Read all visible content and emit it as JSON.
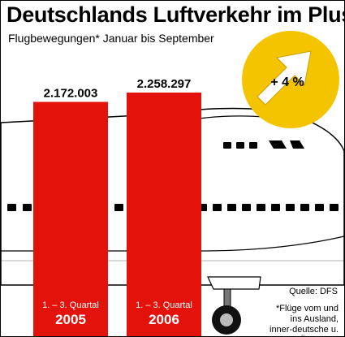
{
  "title": "Deutschlands Luftverkehr im Plus",
  "subtitle": "Flugbewegungen* Januar bis September",
  "badge": {
    "text": "+ 4 %",
    "color": "#f5c400"
  },
  "source": "Quelle: DFS",
  "footnote": "*Flüge vom und ins Ausland, inner-deutsche u. Überflüge",
  "colors": {
    "bar": "#e3120b",
    "badge": "#f5c400",
    "plane": "#ffffff"
  },
  "chart_data": {
    "type": "bar",
    "title": "Deutschlands Luftverkehr im Plus",
    "subtitle": "Flugbewegungen* Januar bis September",
    "categories": [
      "2005",
      "2006"
    ],
    "category_sublabels": [
      "1. – 3. Quartal",
      "1. – 3. Quartal"
    ],
    "values": [
      2172003,
      2258297
    ],
    "value_labels": [
      "2.172.003",
      "2.258.297"
    ],
    "xlabel": "",
    "ylabel": "",
    "grid": false,
    "legend": "none"
  }
}
